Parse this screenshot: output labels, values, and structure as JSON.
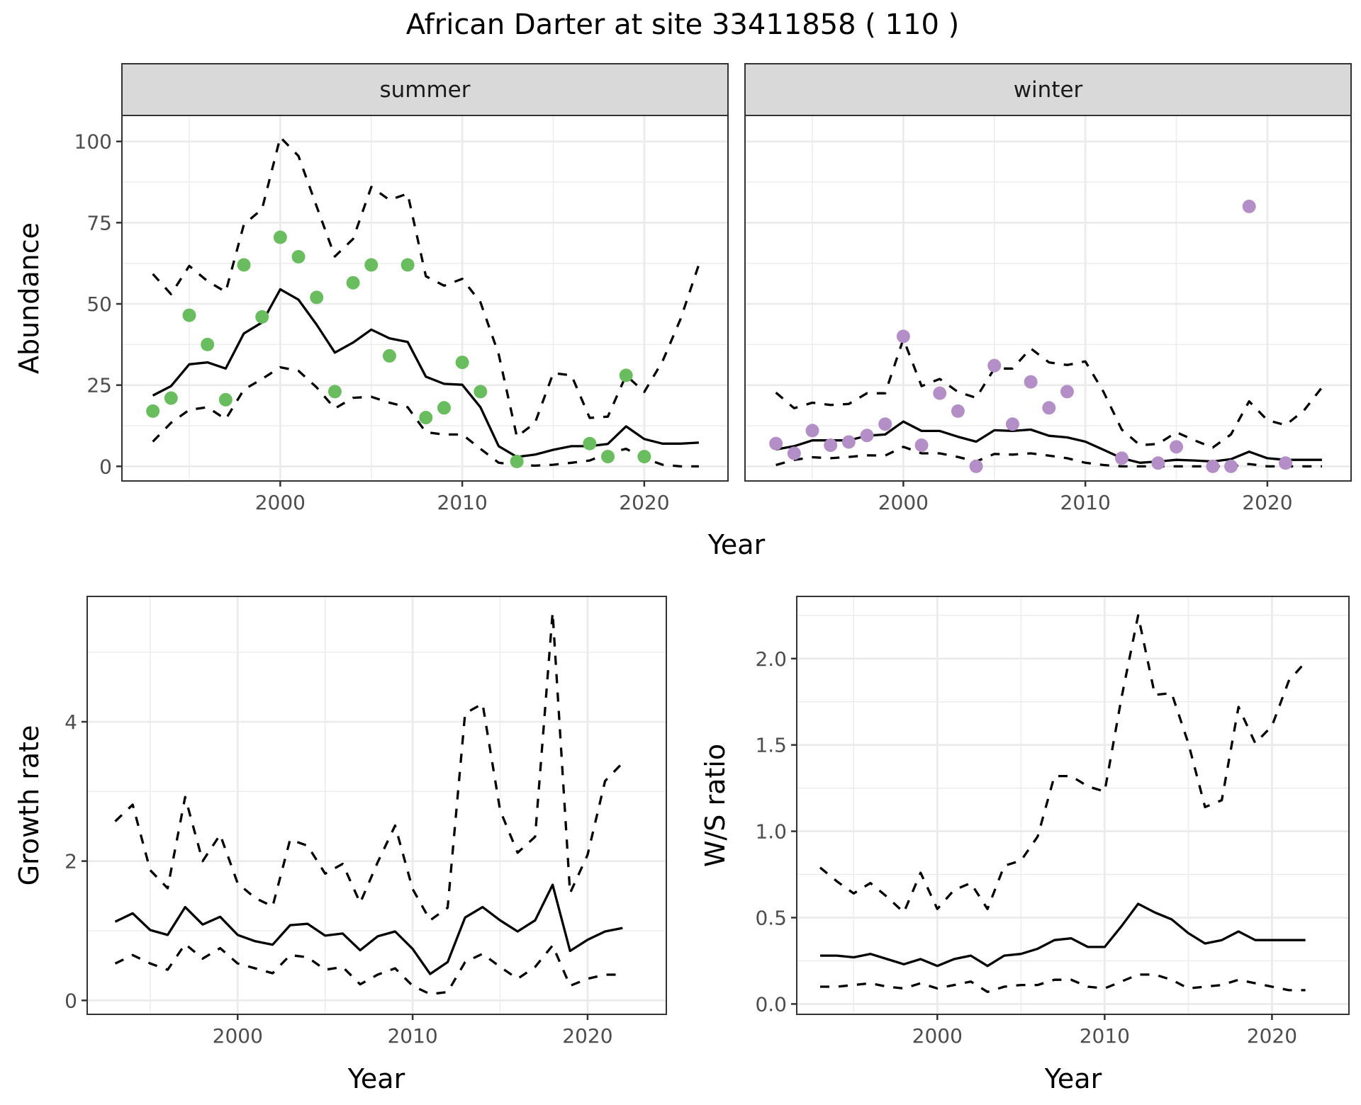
{
  "chart_data": [
    {
      "type": "scatter",
      "title": "African Darter at site 33411858 ( 110 )",
      "facet_group": "abundance",
      "xlabel": "Year",
      "ylabel": "Abundance",
      "xlim": [
        1991.3,
        2024.6
      ],
      "ylim": [
        -4.5,
        108
      ],
      "xticks": [
        2000,
        2010,
        2020
      ],
      "yticks": [
        0,
        25,
        50,
        75,
        100
      ],
      "grid": true,
      "years": [
        1993,
        1994,
        1995,
        1996,
        1997,
        1998,
        1999,
        2000,
        2001,
        2002,
        2003,
        2004,
        2005,
        2006,
        2007,
        2008,
        2009,
        2010,
        2011,
        2012,
        2013,
        2014,
        2015,
        2016,
        2017,
        2018,
        2019,
        2020,
        2021,
        2022,
        2023
      ],
      "facets": [
        {
          "name": "summer",
          "point_color": "#6abd5e",
          "points": {
            "x": [
              1993,
              1994,
              1995,
              1996,
              1997,
              1998,
              1999,
              2000,
              2001,
              2002,
              2003,
              2004,
              2005,
              2006,
              2007,
              2008,
              2009,
              2010,
              2011,
              2013,
              2017,
              2018,
              2019,
              2020
            ],
            "y": [
              17,
              21,
              46.5,
              37.5,
              20.5,
              62,
              46,
              70.5,
              64.5,
              52,
              23,
              56.5,
              62,
              34,
              62,
              15,
              18,
              32,
              23,
              1.5,
              7,
              3,
              28,
              3
            ]
          },
          "median": [
            21.8,
            24.7,
            31.4,
            32,
            30.1,
            40.9,
            44.3,
            54.5,
            51.3,
            43.6,
            35,
            38.1,
            42.1,
            39.4,
            38.3,
            27.6,
            25.4,
            25.1,
            18.2,
            6.2,
            2.9,
            3.6,
            5.1,
            6.2,
            6.2,
            6.9,
            12.3,
            8.4,
            7.0,
            7.0,
            7.3
          ],
          "upper": [
            59.2,
            53,
            61.7,
            57,
            53.7,
            74.4,
            79.2,
            101.3,
            95.5,
            80,
            64.6,
            70,
            86,
            82,
            83.9,
            58.5,
            55.6,
            57.7,
            50.5,
            34.5,
            9.1,
            13.4,
            28.7,
            28,
            14.9,
            15.3,
            28,
            22.9,
            32.3,
            45.4,
            62.1
          ],
          "lower": [
            7.6,
            13.4,
            17.4,
            18.2,
            14.5,
            23.6,
            26.9,
            30.5,
            29.4,
            24.3,
            17.8,
            21.1,
            21.4,
            19.6,
            18.2,
            10.5,
            9.8,
            9.8,
            5.4,
            1.1,
            0.4,
            0.2,
            0.5,
            1.1,
            1.8,
            4,
            5.4,
            2.5,
            0.5,
            0,
            0
          ]
        },
        {
          "name": "winter",
          "point_color": "#b48fc7",
          "points": {
            "x": [
              1993,
              1994,
              1995,
              1996,
              1997,
              1998,
              1999,
              2000,
              2001,
              2002,
              2003,
              2004,
              2005,
              2006,
              2007,
              2008,
              2009,
              2012,
              2014,
              2015,
              2017,
              2018,
              2019,
              2021
            ],
            "y": [
              7,
              4,
              11,
              6.5,
              7.5,
              9.5,
              13,
              40,
              6.5,
              22.5,
              17,
              0,
              31,
              13,
              26,
              18,
              23,
              2.5,
              1,
              6,
              0,
              0,
              80,
              1
            ]
          },
          "median": [
            5.2,
            6.2,
            8,
            8,
            8,
            9.4,
            9.8,
            13.8,
            10.9,
            10.9,
            9.1,
            7.6,
            11.1,
            10.9,
            11.3,
            9.4,
            8.9,
            7.6,
            5.1,
            2.5,
            1.1,
            1.5,
            2,
            1.8,
            1.5,
            2.2,
            4.5,
            2.5,
            2,
            2,
            2
          ],
          "upper": [
            22.7,
            17.9,
            19.6,
            18.9,
            19.2,
            22.5,
            22.5,
            39.2,
            24.7,
            26.9,
            22.9,
            21.1,
            30.1,
            30.1,
            36.3,
            32,
            31.2,
            32.3,
            22.9,
            11.3,
            6.5,
            6.9,
            10.5,
            8,
            5.8,
            9.8,
            20,
            14.2,
            12.7,
            17.1,
            24.3
          ],
          "lower": [
            0.4,
            2,
            2.8,
            2.5,
            2.9,
            3.4,
            3.3,
            6,
            4,
            4,
            2.9,
            1.5,
            3.8,
            3.6,
            4,
            3.3,
            2.5,
            1.1,
            0.4,
            0,
            0,
            0,
            0,
            0,
            0,
            0,
            0.7,
            0,
            0,
            0,
            0
          ]
        }
      ]
    },
    {
      "type": "line",
      "xlabel": "Year",
      "ylabel": "Growth rate",
      "xlim": [
        1991.4,
        2024.5
      ],
      "ylim": [
        -0.2,
        5.8
      ],
      "xticks": [
        2000,
        2010,
        2020
      ],
      "yticks": [
        0,
        2,
        4
      ],
      "grid": true,
      "x": [
        1993,
        1994,
        1995,
        1996,
        1997,
        1998,
        1999,
        2000,
        2001,
        2002,
        2003,
        2004,
        2005,
        2006,
        2007,
        2008,
        2009,
        2010,
        2011,
        2012,
        2013,
        2014,
        2015,
        2016,
        2017,
        2018,
        2019,
        2020,
        2021,
        2022
      ],
      "series": [
        {
          "name": "median",
          "style": "solid",
          "values": [
            1.13,
            1.25,
            1.01,
            0.94,
            1.34,
            1.09,
            1.2,
            0.94,
            0.85,
            0.8,
            1.08,
            1.1,
            0.93,
            0.96,
            0.72,
            0.92,
            0.99,
            0.74,
            0.38,
            0.55,
            1.19,
            1.34,
            1.15,
            0.99,
            1.15,
            1.66,
            0.71,
            0.87,
            0.99,
            1.04
          ]
        },
        {
          "name": "upper",
          "style": "dashed",
          "values": [
            2.57,
            2.81,
            1.87,
            1.61,
            2.92,
            2.0,
            2.38,
            1.68,
            1.47,
            1.35,
            2.31,
            2.22,
            1.82,
            1.96,
            1.4,
            1.98,
            2.51,
            1.6,
            1.15,
            1.33,
            4.12,
            4.26,
            2.73,
            2.12,
            2.35,
            5.57,
            1.54,
            2.09,
            3.15,
            3.41
          ]
        },
        {
          "name": "lower",
          "style": "dashed",
          "values": [
            0.53,
            0.65,
            0.53,
            0.44,
            0.81,
            0.6,
            0.75,
            0.53,
            0.46,
            0.39,
            0.65,
            0.62,
            0.44,
            0.48,
            0.23,
            0.37,
            0.46,
            0.21,
            0.09,
            0.12,
            0.55,
            0.67,
            0.48,
            0.31,
            0.48,
            0.79,
            0.21,
            0.31,
            0.37,
            0.37
          ]
        }
      ]
    },
    {
      "type": "line",
      "xlabel": "Year",
      "ylabel": "W/S ratio",
      "xlim": [
        1991.6,
        2024.6
      ],
      "ylim": [
        -0.06,
        2.36
      ],
      "xticks": [
        2000,
        2010,
        2020
      ],
      "yticks": [
        0.0,
        0.5,
        1.0,
        1.5,
        2.0
      ],
      "ytick_labels": [
        "0.0",
        "0.5",
        "1.0",
        "1.5",
        "2.0"
      ],
      "grid": true,
      "x": [
        1993,
        1994,
        1995,
        1996,
        1997,
        1998,
        1999,
        2000,
        2001,
        2002,
        2003,
        2004,
        2005,
        2006,
        2007,
        2008,
        2009,
        2010,
        2011,
        2012,
        2013,
        2014,
        2015,
        2016,
        2017,
        2018,
        2019,
        2020,
        2021,
        2022
      ],
      "series": [
        {
          "name": "median",
          "style": "solid",
          "values": [
            0.28,
            0.28,
            0.27,
            0.29,
            0.26,
            0.23,
            0.26,
            0.22,
            0.26,
            0.28,
            0.22,
            0.28,
            0.29,
            0.32,
            0.37,
            0.38,
            0.33,
            0.33,
            0.45,
            0.58,
            0.53,
            0.49,
            0.41,
            0.35,
            0.37,
            0.42,
            0.37,
            0.37,
            0.37,
            0.37
          ]
        },
        {
          "name": "upper",
          "style": "dashed",
          "values": [
            0.79,
            0.71,
            0.64,
            0.7,
            0.62,
            0.53,
            0.76,
            0.55,
            0.66,
            0.7,
            0.55,
            0.8,
            0.83,
            0.97,
            1.32,
            1.32,
            1.26,
            1.23,
            1.77,
            2.25,
            1.79,
            1.8,
            1.51,
            1.14,
            1.18,
            1.72,
            1.51,
            1.61,
            1.87,
            1.98
          ]
        },
        {
          "name": "lower",
          "style": "dashed",
          "values": [
            0.1,
            0.1,
            0.11,
            0.12,
            0.1,
            0.09,
            0.12,
            0.09,
            0.11,
            0.13,
            0.07,
            0.1,
            0.11,
            0.11,
            0.14,
            0.14,
            0.1,
            0.09,
            0.13,
            0.17,
            0.17,
            0.14,
            0.09,
            0.1,
            0.11,
            0.14,
            0.12,
            0.1,
            0.08,
            0.08
          ]
        }
      ]
    }
  ]
}
